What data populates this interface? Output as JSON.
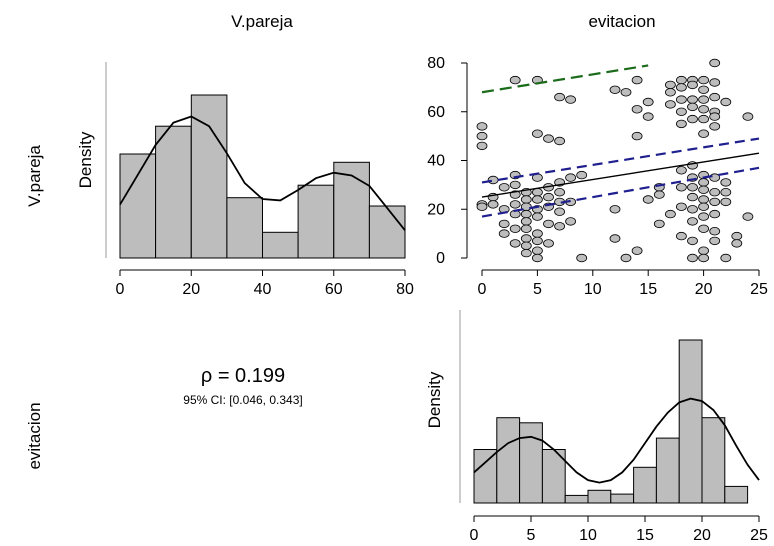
{
  "variables": [
    "V.pareja",
    "evitacion"
  ],
  "panels": {
    "density_label": "Density",
    "correlation": {
      "rho_text": "ρ = 0.199",
      "ci_text": "95% CI: [0.046, 0.343]"
    }
  },
  "chart_data": [
    {
      "type": "bar",
      "panel": "V.pareja histogram",
      "xlabel": "",
      "ylabel": "Density",
      "bins": [
        [
          0,
          10
        ],
        [
          10,
          20
        ],
        [
          20,
          30
        ],
        [
          30,
          40
        ],
        [
          40,
          50
        ],
        [
          50,
          60
        ],
        [
          60,
          70
        ],
        [
          70,
          80
        ]
      ],
      "values": [
        0.015,
        0.019,
        0.0235,
        0.0087,
        0.0037,
        0.0105,
        0.0138,
        0.0075
      ],
      "xlim": [
        0,
        80
      ],
      "ylim": [
        0,
        0.0235
      ],
      "xticks": [
        0,
        20,
        40,
        60,
        80
      ],
      "density_curve": {
        "x": [
          0,
          5,
          10,
          15,
          20,
          25,
          30,
          35,
          40,
          45,
          50,
          55,
          60,
          65,
          70,
          75,
          80
        ],
        "y": [
          0.0077,
          0.012,
          0.0163,
          0.0195,
          0.0204,
          0.019,
          0.0151,
          0.0108,
          0.0085,
          0.0083,
          0.0098,
          0.0115,
          0.0123,
          0.0119,
          0.0104,
          0.0072,
          0.004
        ]
      }
    },
    {
      "type": "scatter",
      "panel": "evitacion vs V.pareja",
      "xlim": [
        0,
        25
      ],
      "ylim": [
        0,
        80
      ],
      "xticks": [
        0,
        5,
        10,
        15,
        20,
        25
      ],
      "yticks": [
        0,
        20,
        40,
        60,
        80
      ],
      "points": [
        [
          0,
          54
        ],
        [
          0,
          50
        ],
        [
          0,
          46
        ],
        [
          0,
          22
        ],
        [
          0,
          21
        ],
        [
          1,
          32
        ],
        [
          1,
          25
        ],
        [
          1,
          22
        ],
        [
          2,
          29
        ],
        [
          2,
          20
        ],
        [
          2,
          14
        ],
        [
          2,
          10
        ],
        [
          3,
          73
        ],
        [
          3,
          34
        ],
        [
          3,
          30
        ],
        [
          3,
          26
        ],
        [
          3,
          22
        ],
        [
          3,
          18
        ],
        [
          3,
          12
        ],
        [
          3,
          6
        ],
        [
          4,
          27
        ],
        [
          4,
          24
        ],
        [
          4,
          21
        ],
        [
          4,
          18
        ],
        [
          4,
          15
        ],
        [
          4,
          12
        ],
        [
          4,
          8
        ],
        [
          4,
          5
        ],
        [
          4,
          2
        ],
        [
          5,
          73
        ],
        [
          5,
          51
        ],
        [
          5,
          33
        ],
        [
          5,
          27
        ],
        [
          5,
          24
        ],
        [
          5,
          20
        ],
        [
          5,
          17
        ],
        [
          5,
          10
        ],
        [
          5,
          7
        ],
        [
          5,
          3
        ],
        [
          5,
          0
        ],
        [
          6,
          49
        ],
        [
          6,
          29
        ],
        [
          6,
          25
        ],
        [
          6,
          21
        ],
        [
          6,
          14
        ],
        [
          6,
          6
        ],
        [
          7,
          66
        ],
        [
          7,
          48
        ],
        [
          7,
          31
        ],
        [
          7,
          27
        ],
        [
          7,
          23
        ],
        [
          7,
          19
        ],
        [
          7,
          13
        ],
        [
          8,
          33
        ],
        [
          8,
          23
        ],
        [
          8,
          15
        ],
        [
          8,
          65
        ],
        [
          9,
          34
        ],
        [
          9,
          0
        ],
        [
          12,
          69
        ],
        [
          12,
          20
        ],
        [
          12,
          8
        ],
        [
          13,
          68
        ],
        [
          13,
          0
        ],
        [
          14,
          73
        ],
        [
          14,
          61
        ],
        [
          14,
          50
        ],
        [
          14,
          3
        ],
        [
          15,
          64
        ],
        [
          15,
          58
        ],
        [
          15,
          24
        ],
        [
          16,
          29
        ],
        [
          16,
          26
        ],
        [
          16,
          14
        ],
        [
          17,
          71
        ],
        [
          17,
          68
        ],
        [
          17,
          63
        ],
        [
          17,
          18
        ],
        [
          18,
          73
        ],
        [
          18,
          70
        ],
        [
          18,
          65
        ],
        [
          18,
          60
        ],
        [
          18,
          55
        ],
        [
          18,
          36
        ],
        [
          18,
          29
        ],
        [
          18,
          21
        ],
        [
          18,
          9
        ],
        [
          19,
          73
        ],
        [
          19,
          71
        ],
        [
          19,
          65
        ],
        [
          19,
          62
        ],
        [
          19,
          57
        ],
        [
          19,
          38
        ],
        [
          19,
          33
        ],
        [
          19,
          29
        ],
        [
          19,
          25
        ],
        [
          19,
          20
        ],
        [
          19,
          15
        ],
        [
          19,
          7
        ],
        [
          19,
          0
        ],
        [
          20,
          73
        ],
        [
          20,
          69
        ],
        [
          20,
          65
        ],
        [
          20,
          61
        ],
        [
          20,
          57
        ],
        [
          20,
          51
        ],
        [
          20,
          34
        ],
        [
          20,
          31
        ],
        [
          20,
          28
        ],
        [
          20,
          24
        ],
        [
          20,
          21
        ],
        [
          20,
          17
        ],
        [
          20,
          12
        ],
        [
          20,
          3
        ],
        [
          20,
          0
        ],
        [
          21,
          80
        ],
        [
          21,
          72
        ],
        [
          21,
          66
        ],
        [
          21,
          60
        ],
        [
          21,
          58
        ],
        [
          21,
          54
        ],
        [
          21,
          33
        ],
        [
          21,
          27
        ],
        [
          21,
          23
        ],
        [
          21,
          18
        ],
        [
          21,
          11
        ],
        [
          21,
          7
        ],
        [
          22,
          64
        ],
        [
          22,
          31
        ],
        [
          22,
          27
        ],
        [
          22,
          23
        ],
        [
          22,
          0
        ],
        [
          23,
          9
        ],
        [
          23,
          6
        ],
        [
          24,
          58
        ],
        [
          24,
          17
        ]
      ],
      "fit_line": {
        "x": [
          0,
          25
        ],
        "y": [
          25,
          43
        ]
      },
      "ci_lower": {
        "x": [
          0,
          25
        ],
        "y": [
          17,
          37
        ]
      },
      "ci_upper": {
        "x": [
          0,
          25
        ],
        "y": [
          31,
          49
        ]
      },
      "green_line": {
        "x": [
          0,
          15
        ],
        "y": [
          68,
          79
        ]
      }
    },
    {
      "type": "bar",
      "panel": "evitacion histogram",
      "xlabel": "",
      "ylabel": "Density",
      "bins": [
        [
          0,
          2
        ],
        [
          2,
          4
        ],
        [
          4,
          6
        ],
        [
          6,
          8
        ],
        [
          8,
          10
        ],
        [
          10,
          12
        ],
        [
          12,
          14
        ],
        [
          14,
          16
        ],
        [
          16,
          18
        ],
        [
          18,
          20
        ],
        [
          20,
          22
        ],
        [
          22,
          24
        ]
      ],
      "values": [
        0.042,
        0.067,
        0.063,
        0.042,
        0.006,
        0.01,
        0.007,
        0.028,
        0.051,
        0.128,
        0.067,
        0.013
      ],
      "xlim": [
        0,
        25
      ],
      "ylim": [
        0,
        0.128
      ],
      "xticks": [
        0,
        5,
        10,
        15,
        20,
        25
      ],
      "density_curve": {
        "x": [
          0,
          1,
          2,
          3,
          4,
          5,
          6,
          7,
          8,
          9,
          10,
          11,
          12,
          13,
          14,
          15,
          16,
          17,
          18,
          19,
          20,
          21,
          22,
          23,
          24,
          25
        ],
        "y": [
          0.024,
          0.032,
          0.04,
          0.047,
          0.051,
          0.052,
          0.049,
          0.042,
          0.033,
          0.024,
          0.018,
          0.016,
          0.018,
          0.024,
          0.034,
          0.047,
          0.06,
          0.071,
          0.079,
          0.082,
          0.08,
          0.073,
          0.061,
          0.045,
          0.03,
          0.018
        ]
      }
    }
  ]
}
